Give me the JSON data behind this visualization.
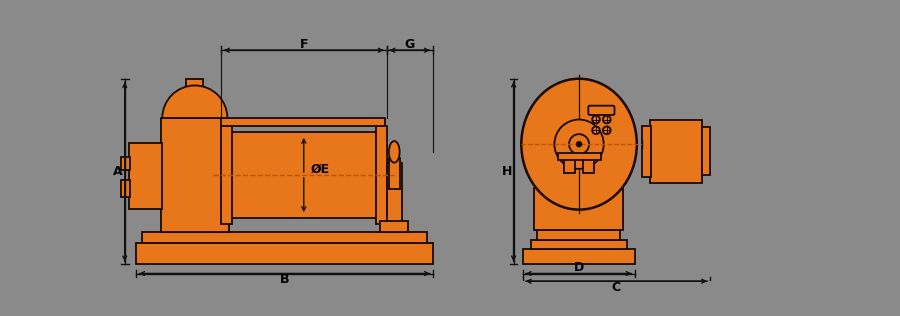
{
  "bg_color": "#8a8a8a",
  "orange": "#e8761a",
  "dark": "#1a0a00",
  "dim_color": "#111111",
  "dash_color": "#b85500",
  "fig_w": 9.0,
  "fig_h": 3.16,
  "dpi": 100,
  "labels": [
    "A",
    "B",
    "C",
    "D",
    "ØE",
    "F",
    "G",
    "H"
  ]
}
